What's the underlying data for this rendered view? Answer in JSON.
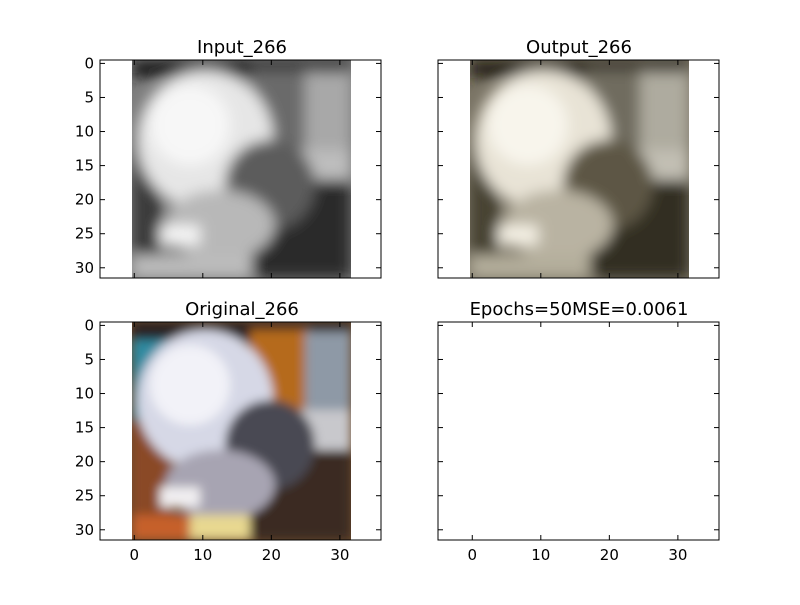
{
  "figure": {
    "colors": {
      "background": "#ffffff",
      "axes_edge": "#000000"
    }
  },
  "chart_data": [
    {
      "type": "heatmap",
      "title": "Input_266",
      "content": "grayscale image of a fluffy kitten",
      "xlim": [
        -5,
        36
      ],
      "ylim": [
        31.5,
        -0.5
      ],
      "xticks": [
        "0",
        "10",
        "20",
        "30"
      ],
      "xtick_values": [
        0,
        10,
        20,
        30
      ],
      "yticks": [
        "0",
        "5",
        "10",
        "15",
        "20",
        "25",
        "30"
      ],
      "ytick_values": [
        0,
        5,
        10,
        15,
        20,
        25,
        30
      ],
      "show_x_tick_labels": false,
      "show_y_tick_labels": true,
      "image_extent": [
        -0.5,
        31.5,
        31.5,
        -0.5
      ]
    },
    {
      "type": "heatmap",
      "title": "Output_266",
      "content": "reconstructed sepia-toned image of a fluffy kitten",
      "xlim": [
        -5,
        36
      ],
      "ylim": [
        31.5,
        -0.5
      ],
      "xticks": [
        "0",
        "10",
        "20",
        "30"
      ],
      "xtick_values": [
        0,
        10,
        20,
        30
      ],
      "yticks": [
        "0",
        "5",
        "10",
        "15",
        "20",
        "25",
        "30"
      ],
      "ytick_values": [
        0,
        5,
        10,
        15,
        20,
        25,
        30
      ],
      "show_x_tick_labels": false,
      "show_y_tick_labels": false,
      "image_extent": [
        -0.5,
        31.5,
        31.5,
        -0.5
      ]
    },
    {
      "type": "heatmap",
      "title": "Original_266",
      "content": "color image of a fluffy gray-white kitten on a wooden floor with blue and orange background",
      "xlim": [
        -5,
        36
      ],
      "ylim": [
        31.5,
        -0.5
      ],
      "xticks": [
        "0",
        "10",
        "20",
        "30"
      ],
      "xtick_values": [
        0,
        10,
        20,
        30
      ],
      "yticks": [
        "0",
        "5",
        "10",
        "15",
        "20",
        "25",
        "30"
      ],
      "ytick_values": [
        0,
        5,
        10,
        15,
        20,
        25,
        30
      ],
      "show_x_tick_labels": true,
      "show_y_tick_labels": true,
      "image_extent": [
        -0.5,
        31.5,
        31.5,
        -0.5
      ]
    },
    {
      "type": "table",
      "title": "Epochs=50MSE=0.0061",
      "content": "empty axes",
      "xlim": [
        -5,
        36
      ],
      "ylim": [
        31.5,
        -0.5
      ],
      "xticks": [
        "0",
        "10",
        "20",
        "30"
      ],
      "xtick_values": [
        0,
        10,
        20,
        30
      ],
      "yticks": [
        "0",
        "5",
        "10",
        "15",
        "20",
        "25",
        "30"
      ],
      "ytick_values": [
        0,
        5,
        10,
        15,
        20,
        25,
        30
      ],
      "show_x_tick_labels": true,
      "show_y_tick_labels": false
    }
  ]
}
